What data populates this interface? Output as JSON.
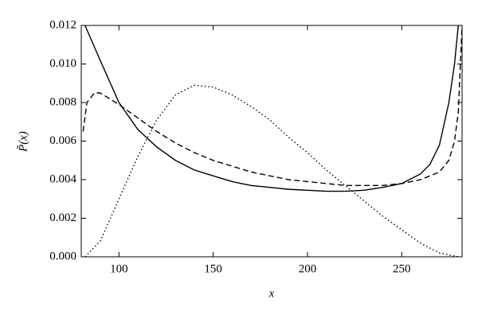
{
  "chart_data": {
    "type": "line",
    "x_label": "x",
    "y_label": "P̃(x)",
    "xlim": [
      80,
      282
    ],
    "xticks": [
      100,
      150,
      200,
      250
    ],
    "ylim": [
      0,
      0.012
    ],
    "yticks": [
      {
        "value": 0,
        "label": "0.000"
      },
      0.002,
      0.004,
      0.006,
      0.008,
      {
        "value": 0.01,
        "label": "0.010"
      },
      0.012
    ],
    "series": [
      {
        "color": "#000000",
        "dash": "solid",
        "x": [
          82,
          90,
          100,
          110,
          120,
          130,
          140,
          150,
          160,
          170,
          180,
          190,
          200,
          210,
          220,
          230,
          240,
          250,
          260,
          265,
          270,
          275,
          278,
          280
        ],
        "values": [
          0.012,
          0.0102,
          0.008,
          0.0066,
          0.0057,
          0.005,
          0.0045,
          0.0042,
          0.0039,
          0.0037,
          0.0036,
          0.0035,
          0.00345,
          0.0034,
          0.0034,
          0.00345,
          0.0036,
          0.0038,
          0.0043,
          0.0048,
          0.0058,
          0.008,
          0.01,
          0.012
        ]
      },
      {
        "color": "#000000",
        "dash": "dashed",
        "x": [
          81,
          83,
          87,
          90,
          100,
          110,
          120,
          130,
          140,
          150,
          160,
          170,
          180,
          190,
          200,
          210,
          220,
          230,
          240,
          250,
          260,
          270,
          275,
          278,
          280,
          282
        ],
        "values": [
          0.0065,
          0.008,
          0.0085,
          0.0085,
          0.0079,
          0.0072,
          0.0065,
          0.0059,
          0.0054,
          0.005,
          0.0047,
          0.0044,
          0.0042,
          0.004,
          0.0039,
          0.0038,
          0.0037,
          0.0037,
          0.0037,
          0.0038,
          0.004,
          0.0044,
          0.005,
          0.006,
          0.0075,
          0.012
        ]
      },
      {
        "color": "#000000",
        "dash": "dotted",
        "x": [
          82,
          90,
          100,
          110,
          120,
          130,
          140,
          150,
          160,
          170,
          180,
          190,
          200,
          210,
          220,
          230,
          240,
          250,
          260,
          270,
          280
        ],
        "values": [
          0,
          0.0008,
          0.003,
          0.0052,
          0.0071,
          0.0084,
          0.0089,
          0.0088,
          0.0084,
          0.0078,
          0.0071,
          0.0062,
          0.0054,
          0.0045,
          0.0037,
          0.0029,
          0.0021,
          0.0014,
          0.0007,
          0.0002,
          0
        ]
      }
    ]
  }
}
